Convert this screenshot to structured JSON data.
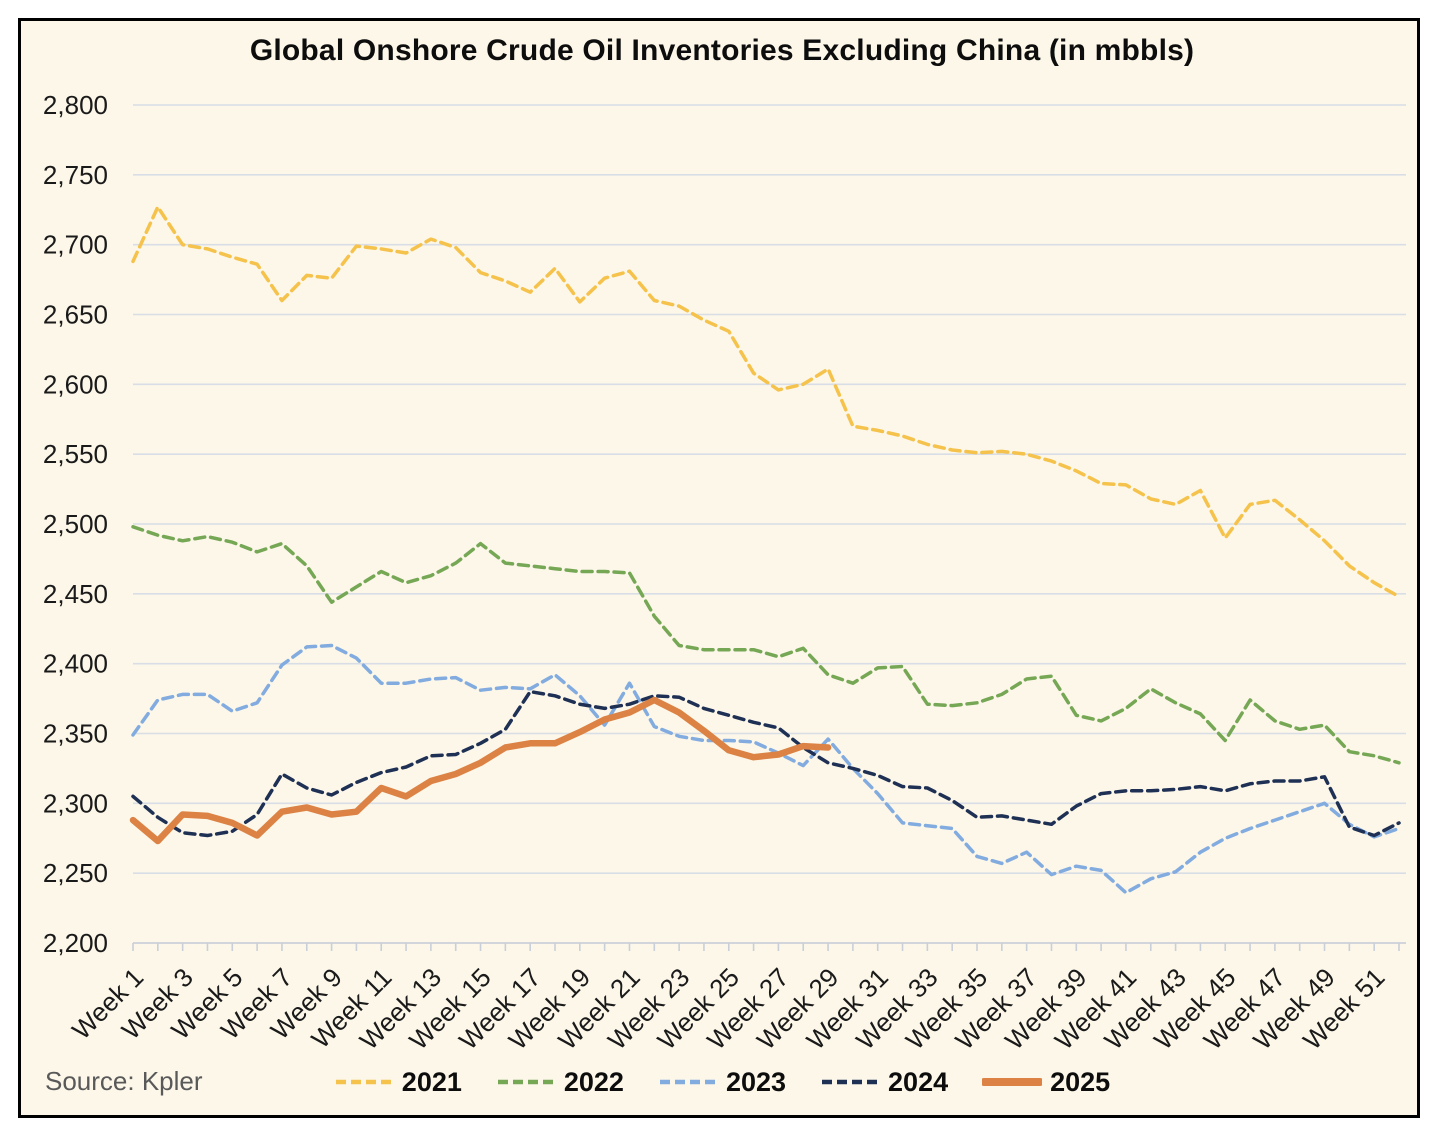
{
  "chart_data": {
    "type": "line",
    "title": "Global Onshore Crude Oil Inventories Excluding China (in mbbls)",
    "source": "Source: Kpler",
    "grid": "horizontal",
    "legend_position": "bottom",
    "background_color": "#FCF7E9",
    "border_color": "#000000",
    "gridline_color": "#D8DDE6",
    "axis_color": "#C9CFD9",
    "text_color": "#1a1a1a",
    "source_color": "#595959",
    "x_axis": {
      "unit": "week",
      "num_weeks": 52,
      "tick_labels": [
        "Week 1",
        "Week 3",
        "Week 5",
        "Week 7",
        "Week 9",
        "Week 11",
        "Week 13",
        "Week 15",
        "Week 17",
        "Week 19",
        "Week 21",
        "Week 23",
        "Week 25",
        "Week 27",
        "Week 29",
        "Week 31",
        "Week 33",
        "Week 35",
        "Week 37",
        "Week 39",
        "Week 41",
        "Week 43",
        "Week 45",
        "Week 47",
        "Week 49",
        "Week 51"
      ]
    },
    "y_axis": {
      "min": 2200,
      "max": 2800,
      "step": 50,
      "tick_labels": [
        "2,200",
        "2,250",
        "2,300",
        "2,350",
        "2,400",
        "2,450",
        "2,500",
        "2,550",
        "2,600",
        "2,650",
        "2,700",
        "2,750",
        "2,800"
      ]
    },
    "series": [
      {
        "name": "2021",
        "color": "#F5C24B",
        "style": "dashed",
        "width": 3.5,
        "values": [
          2688,
          2727,
          2700,
          2697,
          2691,
          2686,
          2660,
          2678,
          2676,
          2699,
          2697,
          2694,
          2704,
          2698,
          2680,
          2674,
          2666,
          2683,
          2659,
          2676,
          2681,
          2660,
          2656,
          2646,
          2638,
          2608,
          2596,
          2600,
          2611,
          2570,
          2567,
          2563,
          2557,
          2553,
          2551,
          2552,
          2550,
          2545,
          2538,
          2529,
          2528,
          2518,
          2514,
          2524,
          2490,
          2514,
          2517,
          2503,
          2488,
          2470,
          2458,
          2448
        ]
      },
      {
        "name": "2022",
        "color": "#76A755",
        "style": "dashed",
        "width": 3.5,
        "values": [
          2498,
          2492,
          2488,
          2491,
          2487,
          2480,
          2486,
          2470,
          2444,
          2455,
          2466,
          2458,
          2463,
          2472,
          2486,
          2472,
          2470,
          2468,
          2466,
          2466,
          2465,
          2434,
          2413,
          2410,
          2410,
          2410,
          2405,
          2411,
          2392,
          2386,
          2397,
          2398,
          2371,
          2370,
          2372,
          2378,
          2389,
          2391,
          2363,
          2359,
          2368,
          2382,
          2372,
          2364,
          2345,
          2374,
          2359,
          2353,
          2356,
          2337,
          2334,
          2329
        ]
      },
      {
        "name": "2023",
        "color": "#82ABDF",
        "style": "dashed",
        "width": 3.5,
        "values": [
          2349,
          2374,
          2378,
          2378,
          2366,
          2372,
          2399,
          2412,
          2413,
          2404,
          2386,
          2386,
          2389,
          2390,
          2381,
          2383,
          2382,
          2392,
          2377,
          2356,
          2386,
          2355,
          2348,
          2345,
          2345,
          2344,
          2336,
          2327,
          2346,
          2325,
          2307,
          2286,
          2284,
          2282,
          2262,
          2257,
          2265,
          2249,
          2255,
          2252,
          2236,
          2246,
          2251,
          2265,
          2275,
          2282,
          2288,
          2294,
          2300,
          2285,
          2276,
          2282
        ]
      },
      {
        "name": "2024",
        "color": "#1F3055",
        "style": "dashed",
        "width": 3.5,
        "values": [
          2305,
          2290,
          2279,
          2277,
          2280,
          2292,
          2321,
          2311,
          2306,
          2315,
          2322,
          2326,
          2334,
          2335,
          2343,
          2353,
          2380,
          2377,
          2371,
          2368,
          2371,
          2377,
          2376,
          2368,
          2363,
          2358,
          2354,
          2340,
          2329,
          2325,
          2320,
          2312,
          2311,
          2302,
          2290,
          2291,
          2288,
          2285,
          2298,
          2307,
          2309,
          2309,
          2310,
          2312,
          2309,
          2314,
          2316,
          2316,
          2319,
          2283,
          2277,
          2286
        ]
      },
      {
        "name": "2025",
        "color": "#DB8244",
        "style": "solid",
        "width": 6.5,
        "values": [
          2288,
          2273,
          2292,
          2291,
          2286,
          2277,
          2294,
          2297,
          2292,
          2294,
          2311,
          2305,
          2316,
          2321,
          2329,
          2340,
          2343,
          2343,
          2351,
          2360,
          2365,
          2374,
          2365,
          2352,
          2338,
          2333,
          2335,
          2341,
          2340
        ]
      }
    ]
  }
}
